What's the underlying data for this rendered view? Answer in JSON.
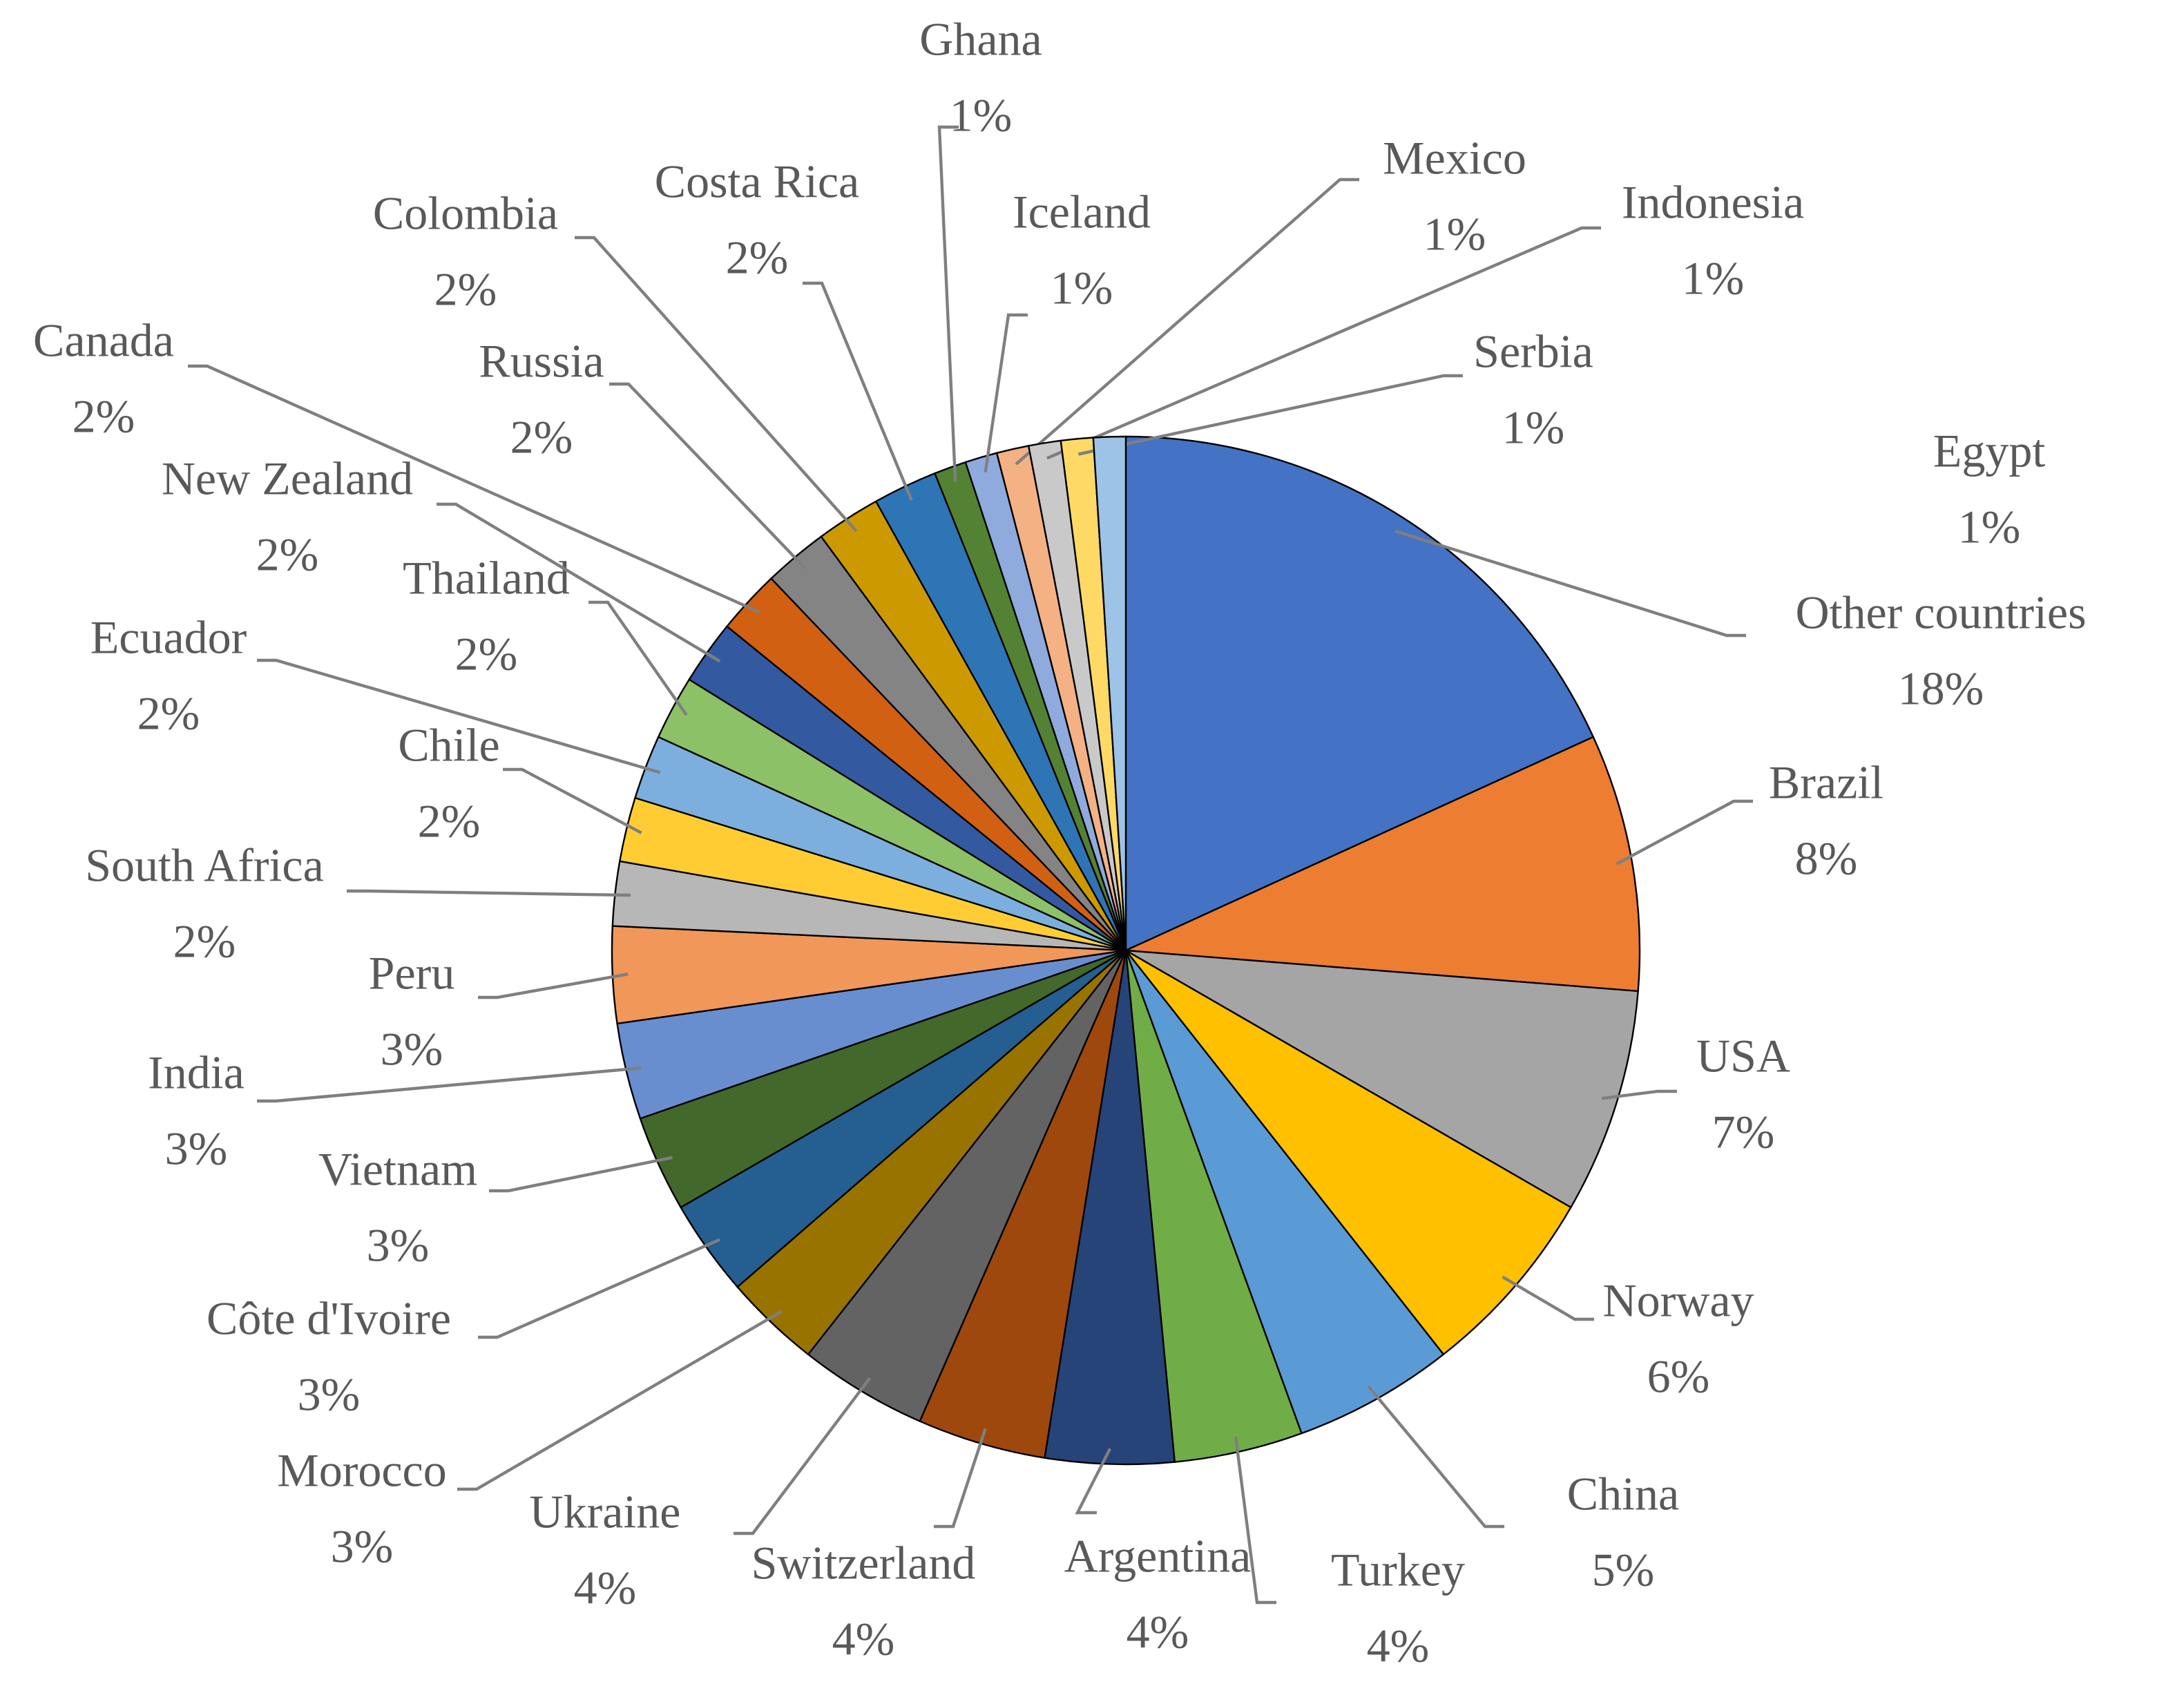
{
  "chart_data": {
    "type": "pie",
    "categories": [
      "Other countries",
      "Brazil",
      "USA",
      "Norway",
      "China",
      "Turkey",
      "Argentina",
      "Switzerland",
      "Ukraine",
      "Morocco",
      "Côte d'Ivoire",
      "Vietnam",
      "India",
      "Peru",
      "South Africa",
      "Chile",
      "Ecuador",
      "Thailand",
      "New Zealand",
      "Canada",
      "Russia",
      "Colombia",
      "Costa Rica",
      "Ghana",
      "Iceland",
      "Mexico",
      "Indonesia",
      "Serbia",
      "Egypt"
    ],
    "values": [
      18,
      8,
      7,
      6,
      5,
      4,
      4,
      4,
      4,
      3,
      3,
      3,
      3,
      3,
      2,
      2,
      2,
      2,
      2,
      2,
      2,
      2,
      2,
      1,
      1,
      1,
      1,
      1,
      1
    ],
    "value_labels": [
      "18%",
      "8%",
      "7%",
      "6%",
      "5%",
      "4%",
      "4%",
      "4%",
      "4%",
      "3%",
      "3%",
      "3%",
      "3%",
      "3%",
      "2%",
      "2%",
      "2%",
      "2%",
      "2%",
      "2%",
      "2%",
      "2%",
      "2%",
      "1%",
      "1%",
      "1%",
      "1%",
      "1%",
      "1%"
    ],
    "colors": [
      "#4472c4",
      "#ed7d31",
      "#a5a5a5",
      "#ffc000",
      "#5b9bd5",
      "#70ad47",
      "#264478",
      "#9e480e",
      "#636363",
      "#997300",
      "#255e91",
      "#43682b",
      "#698ed0",
      "#f1975a",
      "#b7b7b7",
      "#ffcd33",
      "#7cafdd",
      "#8cc168",
      "#335aa1",
      "#d26012",
      "#848484",
      "#cc9a00",
      "#2e75b6",
      "#548235",
      "#8faadc",
      "#f4b183",
      "#c9c9c9",
      "#ffd966",
      "#9dc3e6"
    ]
  }
}
